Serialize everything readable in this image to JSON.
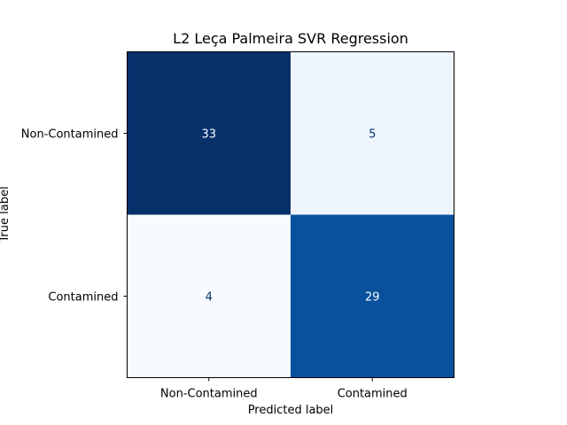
{
  "chart_data": {
    "type": "heatmap",
    "title": "L2 Leça Palmeira SVR Regression",
    "xlabel": "Predicted label",
    "ylabel": "True label",
    "x_categories": [
      "Non-Contamined",
      "Contamined"
    ],
    "y_categories": [
      "Non-Contamined",
      "Contamined"
    ],
    "values": [
      [
        33,
        5
      ],
      [
        4,
        29
      ]
    ],
    "colormap": "Blues",
    "cell_colors": [
      [
        "#08306b",
        "#eef5fd"
      ],
      [
        "#f7fbff",
        "#09519c"
      ]
    ],
    "text_colors": [
      [
        "#f7fbff",
        "#08306b"
      ],
      [
        "#08306b",
        "#f7fbff"
      ]
    ],
    "grid": false
  }
}
